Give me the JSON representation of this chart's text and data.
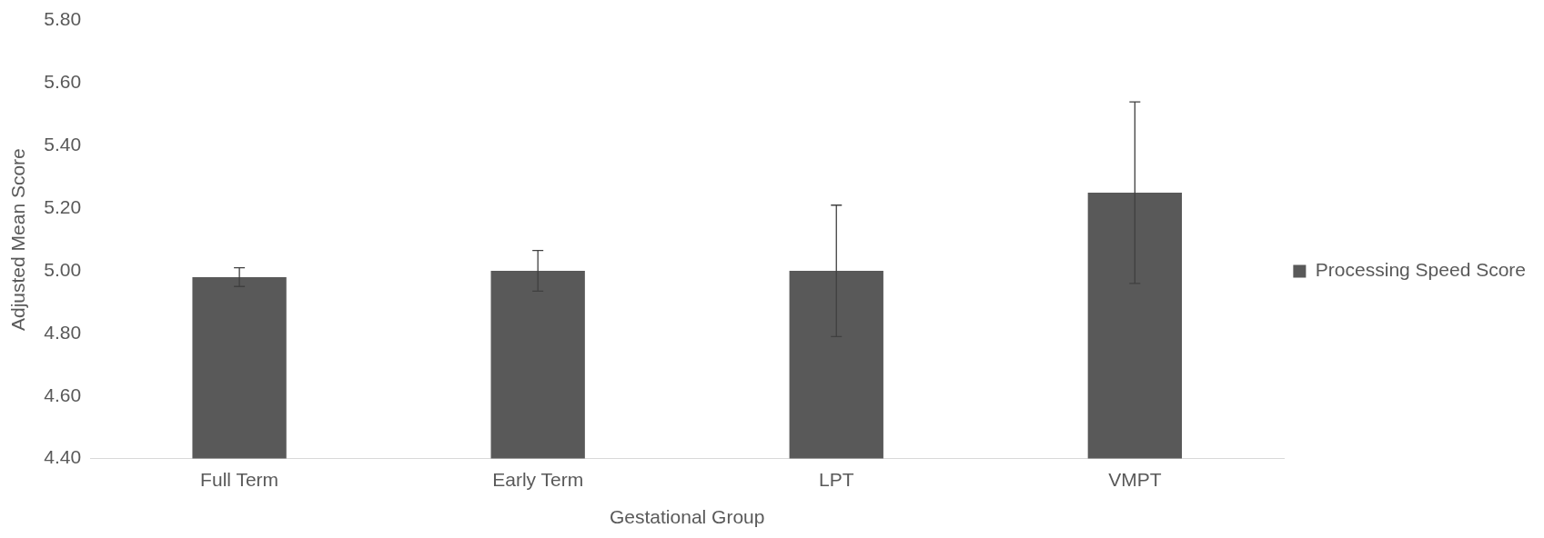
{
  "chart_data": {
    "type": "bar",
    "xlabel": "Gestational Group",
    "ylabel": "Adjusted Mean Score",
    "categories": [
      "Full Term",
      "Early Term",
      "LPT",
      "VMPT"
    ],
    "series": [
      {
        "name": "Processing Speed Score",
        "color": "#595959",
        "values": [
          4.98,
          5.0,
          5.0,
          5.25
        ],
        "errors": [
          0.03,
          0.065,
          0.21,
          0.29
        ]
      }
    ],
    "ylim": [
      4.4,
      5.8
    ],
    "yticks": [
      {
        "value": 4.4,
        "label": "4.40"
      },
      {
        "value": 4.6,
        "label": "4.60"
      },
      {
        "value": 4.8,
        "label": "4.80"
      },
      {
        "value": 5.0,
        "label": "5.00"
      },
      {
        "value": 5.2,
        "label": "5.20"
      },
      {
        "value": 5.4,
        "label": "5.40"
      },
      {
        "value": 5.6,
        "label": "5.60"
      },
      {
        "value": 5.8,
        "label": "5.80"
      }
    ],
    "grid": false,
    "legend": "right"
  }
}
